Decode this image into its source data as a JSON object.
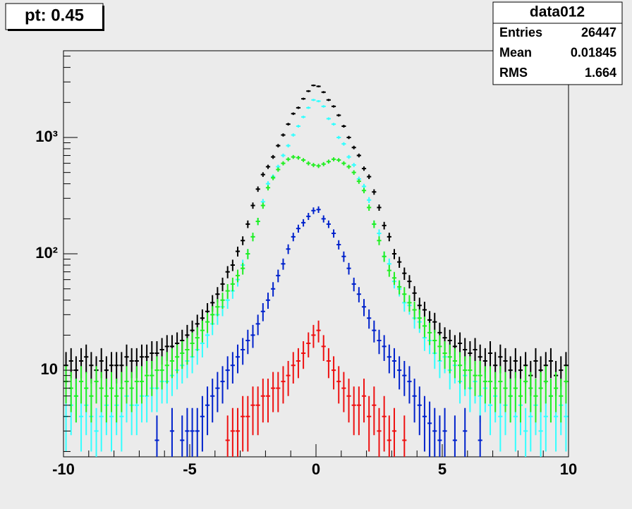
{
  "title_box": "pt: 0.45",
  "stats": {
    "title": "data012",
    "rows": [
      {
        "label": "Entries",
        "value": 26447
      },
      {
        "label": "Mean",
        "value": 0.01845
      },
      {
        "label": "RMS",
        "value": 1.664
      }
    ]
  },
  "chart_data": {
    "type": "histogram",
    "log_y": true,
    "bins": [
      -10,
      -9.8,
      -9.6,
      -9.4,
      -9.2,
      -9,
      -8.8,
      -8.6,
      -8.4,
      -8.2,
      -8,
      -7.8,
      -7.6,
      -7.4,
      -7.2,
      -7,
      -6.8,
      -6.6,
      -6.4,
      -6.2,
      -6,
      -5.8,
      -5.6,
      -5.4,
      -5.2,
      -5,
      -4.8,
      -4.6,
      -4.4,
      -4.2,
      -4,
      -3.8,
      -3.6,
      -3.4,
      -3.2,
      -3,
      -2.8,
      -2.6,
      -2.4,
      -2.2,
      -2,
      -1.8,
      -1.6,
      -1.4,
      -1.2,
      -1,
      -0.8,
      -0.6,
      -0.4,
      -0.2,
      0,
      0.2,
      0.4,
      0.6,
      0.8,
      1,
      1.2,
      1.4,
      1.6,
      1.8,
      2,
      2.2,
      2.4,
      2.6,
      2.8,
      3,
      3.2,
      3.4,
      3.6,
      3.8,
      4,
      4.2,
      4.4,
      4.6,
      4.8,
      5,
      5.2,
      5.4,
      5.6,
      5.8,
      6,
      6.2,
      6.4,
      6.6,
      6.8,
      7,
      7.2,
      7.4,
      7.6,
      7.8,
      8,
      8.2,
      8.4,
      8.6,
      8.8,
      9,
      9.2,
      9.4,
      9.6,
      9.8,
      10
    ],
    "series": [
      {
        "color": "#000000",
        "values": [
          11,
          12,
          10,
          12,
          13,
          11,
          10,
          12,
          10,
          11,
          11,
          11,
          13,
          12,
          12,
          13,
          13,
          14,
          14,
          15,
          16,
          16,
          17,
          18,
          20,
          22,
          25,
          28,
          32,
          38,
          45,
          55,
          70,
          80,
          105,
          130,
          180,
          260,
          360,
          480,
          560,
          680,
          850,
          1050,
          1300,
          1600,
          1800,
          2150,
          2500,
          2800,
          2750,
          2450,
          2100,
          1850,
          1550,
          1250,
          1000,
          820,
          700,
          540,
          460,
          340,
          250,
          175,
          140,
          100,
          85,
          68,
          58,
          46,
          36,
          33,
          27,
          26,
          21,
          19,
          18,
          16,
          17,
          15,
          14,
          15,
          13,
          12,
          14,
          11,
          13,
          12,
          10,
          12,
          10,
          11,
          9,
          12,
          10,
          11,
          12,
          9,
          10,
          11
        ]
      },
      {
        "color": "#33ffff",
        "values": [
          4,
          5,
          6,
          4,
          5,
          4,
          3,
          4,
          5,
          4,
          5,
          4,
          6,
          5,
          5,
          6,
          6,
          7,
          7,
          8,
          8,
          9,
          10,
          11,
          12,
          13,
          15,
          17,
          20,
          25,
          30,
          35,
          40,
          48,
          60,
          80,
          100,
          140,
          190,
          280,
          400,
          460,
          560,
          700,
          850,
          1050,
          1250,
          1500,
          1800,
          2100,
          2050,
          1850,
          1450,
          1300,
          1000,
          880,
          680,
          580,
          440,
          380,
          290,
          180,
          150,
          95,
          82,
          58,
          50,
          38,
          36,
          28,
          26,
          19,
          18,
          14,
          12,
          13,
          10,
          11,
          8,
          9,
          7,
          8,
          6,
          7,
          5,
          6,
          4,
          5,
          6,
          4,
          5,
          3,
          4,
          5,
          3,
          4,
          6,
          4,
          5,
          4
        ]
      },
      {
        "color": "#22ee22",
        "values": [
          8,
          7,
          6,
          8,
          7,
          6,
          8,
          7,
          6,
          7,
          6,
          7,
          8,
          7,
          8,
          8,
          9,
          9,
          10,
          10,
          11,
          12,
          13,
          14,
          15,
          17,
          19,
          22,
          26,
          30,
          35,
          40,
          48,
          55,
          65,
          75,
          100,
          140,
          190,
          260,
          370,
          450,
          530,
          600,
          650,
          680,
          670,
          640,
          600,
          580,
          570,
          590,
          620,
          650,
          640,
          600,
          560,
          500,
          420,
          350,
          250,
          180,
          130,
          95,
          72,
          62,
          52,
          45,
          38,
          33,
          28,
          24,
          21,
          18,
          16,
          14,
          13,
          12,
          11,
          10,
          10,
          9,
          9,
          8,
          8,
          7,
          8,
          7,
          6,
          7,
          6,
          8,
          7,
          6,
          7,
          8,
          6,
          7,
          6,
          8
        ]
      },
      {
        "color": "#0022cc",
        "values": [
          null,
          null,
          null,
          null,
          null,
          null,
          null,
          null,
          null,
          null,
          null,
          null,
          null,
          null,
          null,
          null,
          null,
          null,
          2.5,
          null,
          null,
          3,
          null,
          2.5,
          3,
          3,
          3,
          4,
          5,
          6,
          7,
          8,
          10,
          11,
          13,
          15,
          18,
          20,
          25,
          32,
          40,
          50,
          65,
          82,
          110,
          140,
          165,
          185,
          210,
          235,
          240,
          200,
          180,
          150,
          120,
          95,
          75,
          55,
          45,
          35,
          28,
          22,
          18,
          16,
          13,
          12,
          10,
          9,
          8,
          6,
          5,
          4,
          3.5,
          3,
          2.5,
          3,
          null,
          2.5,
          null,
          3,
          null,
          null,
          2.5,
          null,
          null,
          null,
          null,
          null,
          null,
          null,
          null,
          null,
          null,
          null,
          null,
          null,
          null,
          null
        ]
      },
      {
        "color": "#ee1111",
        "values": [
          null,
          null,
          null,
          null,
          null,
          null,
          null,
          null,
          null,
          null,
          null,
          null,
          null,
          null,
          null,
          null,
          null,
          null,
          null,
          null,
          null,
          null,
          null,
          null,
          null,
          null,
          null,
          null,
          null,
          null,
          null,
          null,
          2.5,
          3,
          3,
          4,
          4,
          5,
          5,
          6,
          6,
          7,
          7,
          8,
          9,
          11,
          12,
          14,
          17,
          20,
          22,
          16,
          12,
          10,
          8,
          7,
          6,
          5,
          5,
          6,
          4,
          5,
          3,
          4,
          2.5,
          3,
          null,
          2.5,
          null,
          null,
          null,
          null,
          null,
          null,
          null,
          null,
          null,
          null,
          null,
          null,
          null,
          null,
          null,
          null,
          null,
          null,
          null,
          null,
          null,
          null,
          null,
          null,
          null,
          null,
          null,
          null,
          null,
          null,
          null,
          null
        ]
      }
    ],
    "xlim": [
      -10,
      10
    ],
    "xticks": [
      -10,
      -5,
      0,
      5,
      10
    ],
    "ylim": [
      1.8,
      5560
    ],
    "yticks": [
      10,
      {
        "value": 100,
        "label": "10²"
      },
      {
        "value": 1000,
        "label": "10³"
      }
    ]
  }
}
